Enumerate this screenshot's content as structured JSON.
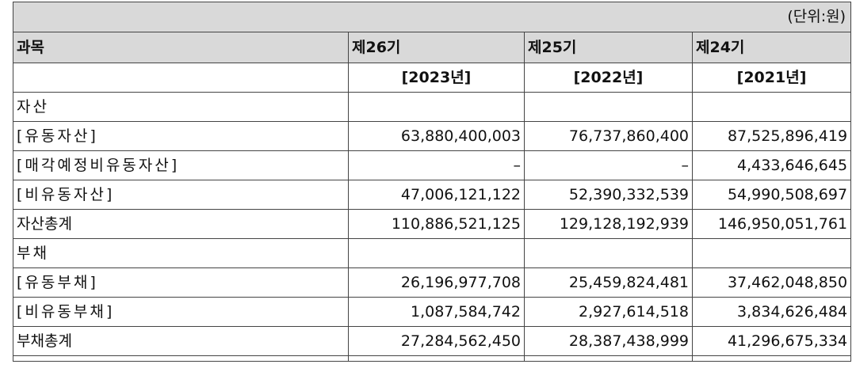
{
  "unit_note": "(단위:원)",
  "headers": {
    "item": "과목",
    "p1": "제26기",
    "p2": "제25기",
    "p3": "제24기"
  },
  "years": {
    "p1": "[2023년]",
    "p2": "[2022년]",
    "p3": "[2021년]"
  },
  "rows": [
    {
      "label": "자산",
      "v1": "",
      "v2": "",
      "v3": ""
    },
    {
      "label": "[유동자산]",
      "v1": "63,880,400,003",
      "v2": "76,737,860,400",
      "v3": "87,525,896,419"
    },
    {
      "label": "[매각예정비유동자산]",
      "v1": "–",
      "v2": "–",
      "v3": "4,433,646,645"
    },
    {
      "label": "[비유동자산]",
      "v1": "47,006,121,122",
      "v2": "52,390,332,539",
      "v3": "54,990,508,697"
    },
    {
      "label": "자산총계",
      "v1": "110,886,521,125",
      "v2": "129,128,192,939",
      "v3": "146,950,051,761"
    },
    {
      "label": "부채",
      "v1": "",
      "v2": "",
      "v3": ""
    },
    {
      "label": "[유동부채]",
      "v1": "26,196,977,708",
      "v2": "25,459,824,481",
      "v3": "37,462,048,850"
    },
    {
      "label": "[비유동부채]",
      "v1": "1,087,584,742",
      "v2": "2,927,614,518",
      "v3": "3,834,626,484"
    },
    {
      "label": "부채총계",
      "v1": "27,284,562,450",
      "v2": "28,387,438,999",
      "v3": "41,296,675,334"
    }
  ]
}
